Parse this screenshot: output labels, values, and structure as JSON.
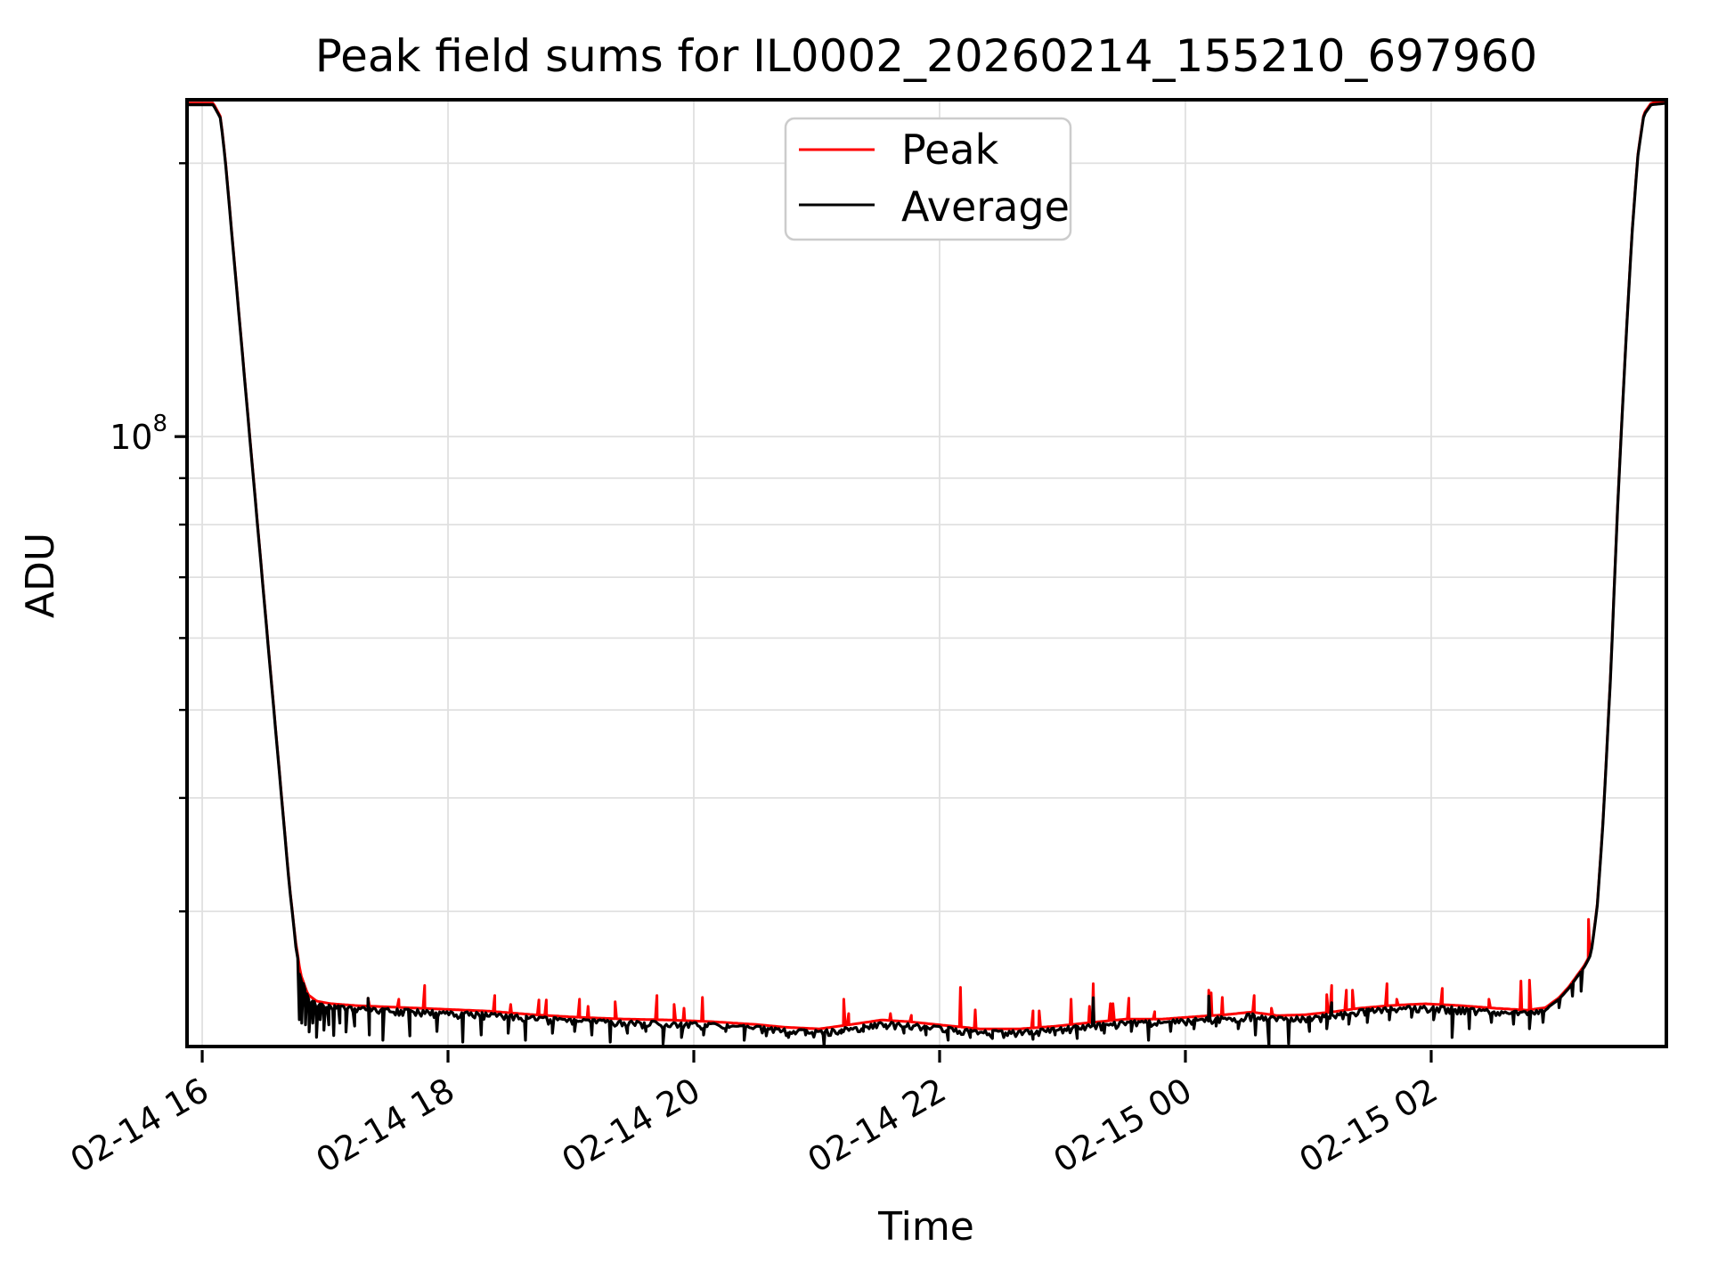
{
  "figure": {
    "background": "#ffffff"
  },
  "chart_data": {
    "type": "line",
    "title": "Peak field sums for IL0002_20260214_155210_697960",
    "xlabel": "Time",
    "ylabel": "ADU",
    "grid": true,
    "colors": {
      "peak": "#ff0000",
      "average": "#000000",
      "gridline": "#e0e0e0",
      "spine": "#000000",
      "legend_border": "#cccccc",
      "legend_background": "#ffffff"
    },
    "legend": {
      "position": "upper center",
      "entries": [
        {
          "label": "Peak",
          "color": "#ff0000"
        },
        {
          "label": "Average",
          "color": "#000000"
        }
      ]
    },
    "x_axis": {
      "kind": "datetime-hours-since-02-14-00:00",
      "start_hours": 15.862,
      "end_hours": 27.928,
      "ticks": [
        {
          "hours": 16,
          "label": "02-14 16"
        },
        {
          "hours": 18,
          "label": "02-14 18"
        },
        {
          "hours": 20,
          "label": "02-14 20"
        },
        {
          "hours": 22,
          "label": "02-14 22"
        },
        {
          "hours": 24,
          "label": "02-15 00"
        },
        {
          "hours": 26,
          "label": "02-15 02"
        }
      ],
      "tick_label_rotation_deg": 30
    },
    "y_axis": {
      "scale": "log",
      "min": 21200000.0,
      "max": 236000000.0,
      "major_ticks": [
        {
          "value": 100000000.0,
          "label_base": "10",
          "label_exp": "8"
        }
      ],
      "minor_ticks": [
        200000000.0,
        90000000.0,
        80000000.0,
        70000000.0,
        60000000.0,
        50000000.0,
        40000000.0,
        30000000.0
      ]
    },
    "series_names": [
      "Peak",
      "Average"
    ],
    "trend_adu": [
      [
        15.862,
        232000000.0
      ],
      [
        16.09,
        232000000.0
      ],
      [
        16.15,
        224000000.0
      ],
      [
        16.19,
        200000000.0
      ],
      [
        16.71,
        31900000.0
      ],
      [
        16.76,
        27700000.0
      ],
      [
        16.8,
        25500000.0
      ],
      [
        16.86,
        24200000.0
      ],
      [
        16.93,
        23800000.0
      ],
      [
        17.04,
        23650000.0
      ],
      [
        17.25,
        23530000.0
      ],
      [
        17.62,
        23420000.0
      ],
      [
        17.98,
        23310000.0
      ],
      [
        18.34,
        23200000.0
      ],
      [
        18.7,
        22990000.0
      ],
      [
        19.07,
        22840000.0
      ],
      [
        19.43,
        22740000.0
      ],
      [
        19.79,
        22690000.0
      ],
      [
        20.15,
        22590000.0
      ],
      [
        20.51,
        22430000.0
      ],
      [
        20.73,
        22280000.0
      ],
      [
        21.02,
        22180000.0
      ],
      [
        21.28,
        22430000.0
      ],
      [
        21.53,
        22690000.0
      ],
      [
        21.75,
        22590000.0
      ],
      [
        22.04,
        22380000.0
      ],
      [
        22.33,
        22180000.0
      ],
      [
        22.65,
        22180000.0
      ],
      [
        22.94,
        22330000.0
      ],
      [
        23.23,
        22540000.0
      ],
      [
        23.52,
        22740000.0
      ],
      [
        23.81,
        22740000.0
      ],
      [
        24.1,
        22890000.0
      ],
      [
        24.32,
        22990000.0
      ],
      [
        24.54,
        23150000.0
      ],
      [
        24.75,
        22940000.0
      ],
      [
        24.97,
        22990000.0
      ],
      [
        25.19,
        23150000.0
      ],
      [
        25.41,
        23370000.0
      ],
      [
        25.66,
        23530000.0
      ],
      [
        25.95,
        23640000.0
      ],
      [
        26.24,
        23530000.0
      ],
      [
        26.53,
        23370000.0
      ],
      [
        26.78,
        23260000.0
      ],
      [
        26.93,
        23410000.0
      ],
      [
        27.04,
        24010000.0
      ],
      [
        27.12,
        24680000.0
      ],
      [
        27.2,
        25540000.0
      ],
      [
        27.25,
        26100000.0
      ],
      [
        27.3,
        26900000.0
      ],
      [
        27.35,
        30200000.0
      ],
      [
        27.4,
        37900000.0
      ],
      [
        27.46,
        54500000.0
      ],
      [
        27.52,
        85500000.0
      ],
      [
        27.58,
        124000000.0
      ],
      [
        27.63,
        164000000.0
      ],
      [
        27.68,
        203000000.0
      ],
      [
        27.73,
        226000000.0
      ],
      [
        27.79,
        232000000.0
      ],
      [
        27.93,
        233000000.0
      ]
    ],
    "peak_spikes_adu": [
      [
        17.35,
        24070000.0
      ],
      [
        17.6,
        24010000.0
      ],
      [
        17.81,
        24860000.0
      ],
      [
        18.38,
        24240000.0
      ],
      [
        18.51,
        23690000.0
      ],
      [
        18.74,
        23960000.0
      ],
      [
        18.8,
        23960000.0
      ],
      [
        19.07,
        24010000.0
      ],
      [
        19.14,
        23580000.0
      ],
      [
        19.36,
        23850000.0
      ],
      [
        19.7,
        24240000.0
      ],
      [
        19.84,
        23690000.0
      ],
      [
        19.92,
        23470000.0
      ],
      [
        20.07,
        24120000.0
      ],
      [
        21.22,
        24010000.0
      ],
      [
        21.26,
        23150000.0
      ],
      [
        21.6,
        23150000.0
      ],
      [
        21.77,
        23050000.0
      ],
      [
        22.17,
        24740000.0
      ],
      [
        22.29,
        23370000.0
      ],
      [
        22.76,
        23310000.0
      ],
      [
        22.81,
        23310000.0
      ],
      [
        23.07,
        24010000.0
      ],
      [
        23.22,
        23580000.0
      ],
      [
        23.25,
        24970000.0
      ],
      [
        23.39,
        23740000.0
      ],
      [
        23.41,
        23740000.0
      ],
      [
        23.54,
        24070000.0
      ],
      [
        23.75,
        23260000.0
      ],
      [
        24.19,
        24570000.0
      ],
      [
        24.21,
        24400000.0
      ],
      [
        24.3,
        24120000.0
      ],
      [
        24.56,
        24240000.0
      ],
      [
        24.7,
        23470000.0
      ],
      [
        25.15,
        24290000.0
      ],
      [
        25.19,
        24860000.0
      ],
      [
        25.31,
        24570000.0
      ],
      [
        25.36,
        24570000.0
      ],
      [
        25.64,
        24970000.0
      ],
      [
        25.72,
        24010000.0
      ],
      [
        26.09,
        24680000.0
      ],
      [
        26.47,
        24010000.0
      ],
      [
        26.73,
        25140000.0
      ],
      [
        26.8,
        25200000.0
      ],
      [
        27.28,
        29400000.0
      ]
    ],
    "average_dips_adu": [
      [
        16.79,
        22800000.0
      ],
      [
        16.81,
        22600000.0
      ],
      [
        16.84,
        22500000.0
      ],
      [
        16.87,
        22100000.0
      ],
      [
        16.9,
        22600000.0
      ],
      [
        16.93,
        21800000.0
      ],
      [
        16.96,
        22800000.0
      ],
      [
        16.99,
        22200000.0
      ],
      [
        17.03,
        22500000.0
      ],
      [
        17.07,
        21900000.0
      ],
      [
        17.12,
        22600000.0
      ],
      [
        17.17,
        22100000.0
      ],
      [
        17.24,
        22430000.0
      ],
      [
        17.36,
        21930000.0
      ],
      [
        17.47,
        21640000.0
      ],
      [
        17.69,
        21880000.0
      ],
      [
        17.91,
        22130000.0
      ],
      [
        18.12,
        21540000.0
      ],
      [
        18.27,
        21930000.0
      ],
      [
        18.49,
        22030000.0
      ],
      [
        18.63,
        21640000.0
      ],
      [
        18.85,
        22030000.0
      ],
      [
        19.03,
        22130000.0
      ],
      [
        19.17,
        21930000.0
      ],
      [
        19.32,
        21540000.0
      ],
      [
        19.46,
        22030000.0
      ],
      [
        19.61,
        22130000.0
      ],
      [
        19.75,
        21450000.0
      ],
      [
        19.9,
        21790000.0
      ],
      [
        20.08,
        21930000.0
      ],
      [
        20.26,
        22130000.0
      ],
      [
        20.41,
        21640000.0
      ],
      [
        20.59,
        21880000.0
      ],
      [
        20.77,
        21790000.0
      ],
      [
        20.91,
        21930000.0
      ],
      [
        21.06,
        21310000.0
      ],
      [
        21.2,
        22030000.0
      ],
      [
        21.38,
        22130000.0
      ],
      [
        21.57,
        22280000.0
      ],
      [
        21.71,
        22030000.0
      ],
      [
        21.89,
        21930000.0
      ],
      [
        22.07,
        21640000.0
      ],
      [
        22.25,
        21790000.0
      ],
      [
        22.43,
        21740000.0
      ],
      [
        22.62,
        21840000.0
      ],
      [
        22.76,
        21690000.0
      ],
      [
        22.94,
        21930000.0
      ],
      [
        23.12,
        21740000.0
      ],
      [
        23.34,
        22030000.0
      ],
      [
        23.56,
        22130000.0
      ],
      [
        23.7,
        21640000.0
      ],
      [
        23.88,
        22130000.0
      ],
      [
        24.07,
        22280000.0
      ],
      [
        24.25,
        22430000.0
      ],
      [
        24.43,
        22280000.0
      ],
      [
        24.57,
        21930000.0
      ],
      [
        24.68,
        21300000.0
      ],
      [
        24.84,
        21450000.0
      ],
      [
        25.01,
        22130000.0
      ],
      [
        25.15,
        22280000.0
      ],
      [
        25.33,
        22540000.0
      ],
      [
        25.48,
        22640000.0
      ],
      [
        25.66,
        22790000.0
      ],
      [
        25.84,
        22940000.0
      ],
      [
        26.02,
        22790000.0
      ],
      [
        26.17,
        21790000.0
      ],
      [
        26.31,
        22280000.0
      ],
      [
        26.49,
        22640000.0
      ],
      [
        26.67,
        22540000.0
      ],
      [
        26.8,
        22280000.0
      ],
      [
        26.91,
        22640000.0
      ],
      [
        27.04,
        23500000.0
      ],
      [
        27.15,
        24200000.0
      ],
      [
        27.22,
        24500000.0
      ]
    ],
    "average_bumps_adu": [
      [
        17.35,
        24070000.0
      ],
      [
        23.25,
        24100000.0
      ],
      [
        24.19,
        24200000.0
      ],
      [
        25.19,
        23800000.0
      ]
    ],
    "noise_model": {
      "seed": 42,
      "step_hours": 0.015,
      "range_hours": [
        16.76,
        26.95
      ],
      "max_depth_frac": 0.018,
      "exponent": 2
    },
    "peak_envelope_factor": 1.004
  }
}
